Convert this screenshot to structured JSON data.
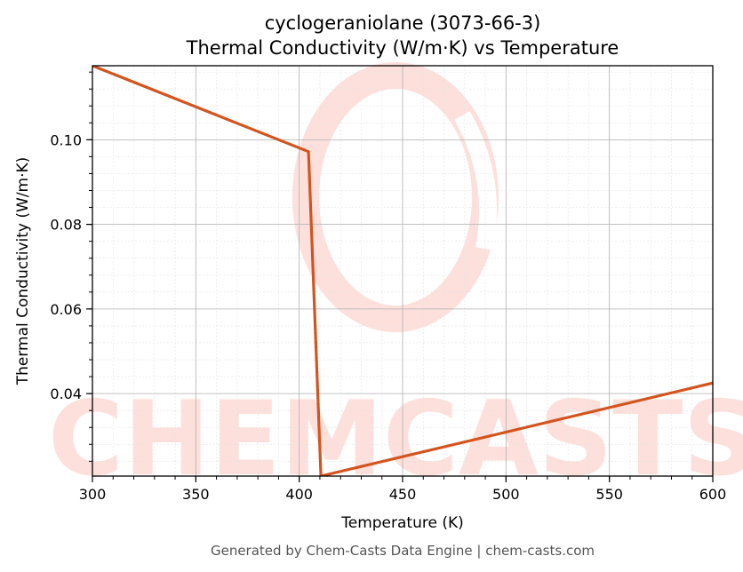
{
  "chart_data": {
    "type": "line",
    "title_line1": "cyclogeraniolane (3073-66-3)",
    "title_line2": "Thermal Conductivity (W/m·K) vs Temperature",
    "xlabel": "Temperature (K)",
    "ylabel": "Thermal Conductivity (W/m·K)",
    "xlim": [
      300,
      600
    ],
    "ylim": [
      0.0205,
      0.1175
    ],
    "x_ticks": [
      300,
      350,
      400,
      450,
      500,
      550,
      600
    ],
    "x_tick_labels": [
      "300",
      "350",
      "400",
      "450",
      "500",
      "550",
      "600"
    ],
    "y_ticks": [
      0.04,
      0.06,
      0.08,
      0.1
    ],
    "y_tick_labels": [
      "0.04",
      "0.06",
      "0.08",
      "0.10"
    ],
    "grid": true,
    "series": [
      {
        "color": "#d4541f",
        "x": [
          300,
          404.5,
          410.5,
          600
        ],
        "y": [
          0.1175,
          0.0972,
          0.0205,
          0.0425
        ]
      }
    ]
  },
  "watermark": {
    "text": "CHEMCASTS",
    "color": "#fde0dc"
  },
  "footer": {
    "text": "Generated by Chem-Casts Data Engine | chem-casts.com"
  }
}
